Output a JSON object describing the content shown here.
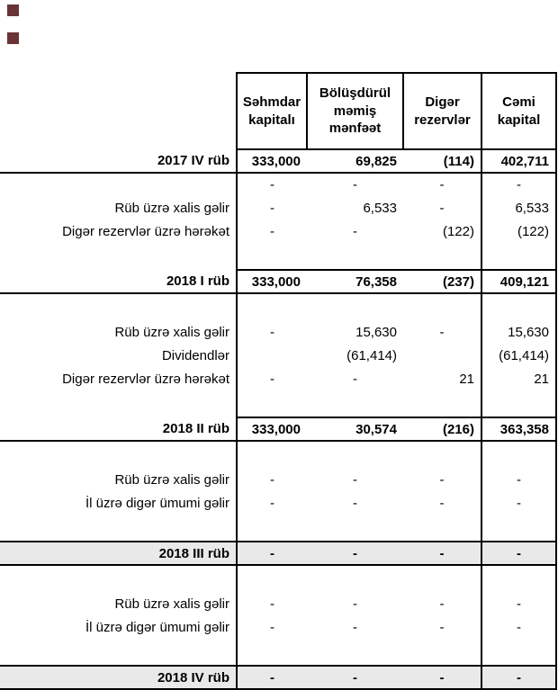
{
  "decor": {
    "marker_color": "#6a3434"
  },
  "table": {
    "column_headers": [
      "Səhmdar kapitalı",
      "Bölüşdürül məmiş mənfəət",
      "Digər rezervlər",
      "Cəmi kapital"
    ],
    "rows": [
      {
        "type": "total",
        "label": "2017 IV rüb",
        "values": [
          "333,000",
          "69,825",
          "(114)",
          "402,711"
        ]
      },
      {
        "type": "data",
        "label": "",
        "values": [
          "-",
          "-",
          "-",
          "-"
        ]
      },
      {
        "type": "data",
        "label": "Rüb üzrə xalis gəlir",
        "values": [
          "-",
          "6,533",
          "-",
          "6,533"
        ]
      },
      {
        "type": "data",
        "label": "Digər rezervlər üzrə hərəkət",
        "values": [
          "-",
          "-",
          "(122)",
          "(122)"
        ]
      },
      {
        "type": "spacer",
        "label": "",
        "values": [
          "",
          "",
          "",
          ""
        ]
      },
      {
        "type": "total",
        "label": "2018 I rüb",
        "values": [
          "333,000",
          "76,358",
          "(237)",
          "409,121"
        ]
      },
      {
        "type": "spacer",
        "label": "",
        "values": [
          "",
          "",
          "",
          ""
        ]
      },
      {
        "type": "data",
        "label": "Rüb üzrə xalis gəlir",
        "values": [
          "-",
          "15,630",
          "-",
          "15,630"
        ]
      },
      {
        "type": "data",
        "label": "Dividendlər",
        "values": [
          "",
          "(61,414)",
          "",
          "(61,414)"
        ]
      },
      {
        "type": "data",
        "label": "Digər rezervlər üzrə hərəkət",
        "values": [
          "-",
          "-",
          "21",
          "21"
        ]
      },
      {
        "type": "spacer",
        "label": "",
        "values": [
          "",
          "",
          "",
          ""
        ]
      },
      {
        "type": "total",
        "label": "2018 II rüb",
        "values": [
          "333,000",
          "30,574",
          "(216)",
          "363,358"
        ]
      },
      {
        "type": "spacer",
        "label": "",
        "values": [
          "",
          "",
          "",
          ""
        ]
      },
      {
        "type": "data",
        "label": "Rüb üzrə xalis gəlir",
        "values": [
          "-",
          "-",
          "-",
          "-"
        ]
      },
      {
        "type": "data",
        "label": "İl üzrə digər ümumi gəlir",
        "values": [
          "-",
          "-",
          "-",
          "-"
        ]
      },
      {
        "type": "spacer",
        "label": "",
        "values": [
          "",
          "",
          "",
          ""
        ]
      },
      {
        "type": "total_shaded",
        "label": "2018 III rüb",
        "values": [
          "-",
          "-",
          "-",
          "-"
        ]
      },
      {
        "type": "spacer",
        "label": "",
        "values": [
          "",
          "",
          "",
          ""
        ]
      },
      {
        "type": "data",
        "label": "Rüb üzrə xalis gəlir",
        "values": [
          "-",
          "-",
          "-",
          "-"
        ]
      },
      {
        "type": "data",
        "label": "İl üzrə digər ümumi gəlir",
        "values": [
          "-",
          "-",
          "-",
          "-"
        ]
      },
      {
        "type": "spacer",
        "label": "",
        "values": [
          "",
          "",
          "",
          ""
        ]
      },
      {
        "type": "total_shaded",
        "label": "2018 IV rüb",
        "values": [
          "-",
          "-",
          "-",
          "-"
        ]
      }
    ]
  }
}
